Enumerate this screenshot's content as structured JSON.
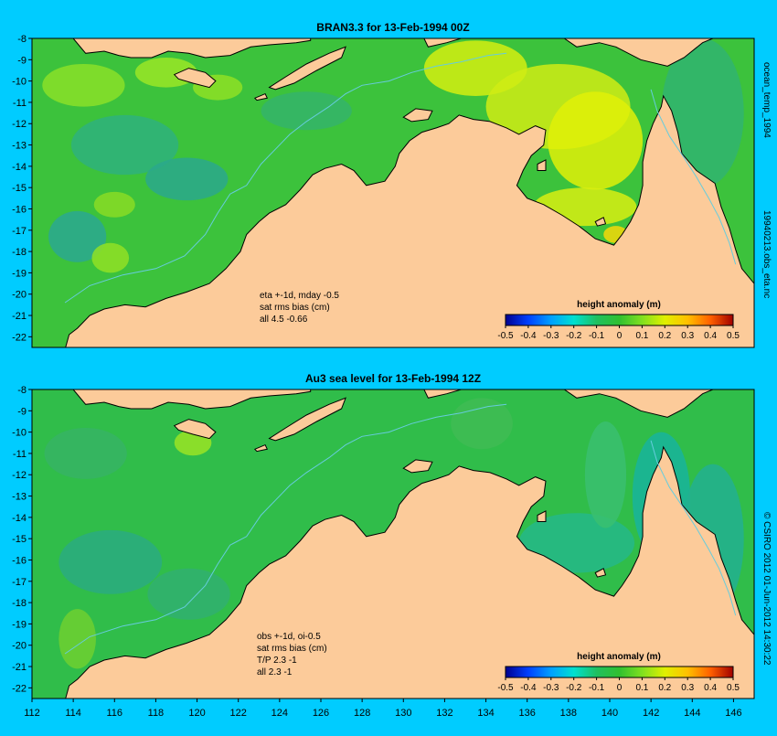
{
  "colors": {
    "background": "#00ccff",
    "land": "#fccb9a",
    "coast": "#000000",
    "isobath": "#66ccdd",
    "ocean_base_top": "#3cc23c",
    "ocean_base_bottom": "#30bd4a"
  },
  "side_labels": {
    "top_1": "ocean_temp_1994",
    "top_2": "19940213.obs_eta.nc",
    "bottom": "© CSIRO 2012  01-Jun-2012 14:30:22"
  },
  "x_ticks": [
    "112",
    "114",
    "116",
    "118",
    "120",
    "122",
    "124",
    "126",
    "128",
    "130",
    "132",
    "134",
    "136",
    "138",
    "140",
    "142",
    "144",
    "146"
  ],
  "y_ticks": [
    "-8",
    "-9",
    "-10",
    "-11",
    "-12",
    "-13",
    "-14",
    "-15",
    "-16",
    "-17",
    "-18",
    "-19",
    "-20",
    "-21",
    "-22"
  ],
  "colorbar": {
    "title": "height anomaly (m)",
    "ticks": [
      "-0.5",
      "-0.4",
      "-0.3",
      "-0.2",
      "-0.1",
      "0",
      "0.1",
      "0.2",
      "0.3",
      "0.4",
      "0.5"
    ],
    "stops": [
      "#00008f",
      "#0040ff",
      "#00a0ff",
      "#00e0d0",
      "#20c060",
      "#30c030",
      "#80e020",
      "#e0f000",
      "#ffc000",
      "#ff6000",
      "#a00000"
    ]
  },
  "panels": [
    {
      "title": "BRAN3.3  for 13-Feb-1994 00Z",
      "annotation": [
        "eta +-1d, mday -0.5",
        "sat rms bias (cm)",
        "all 4.5 -0.66"
      ]
    },
    {
      "title": "Au3 sea level  for 13-Feb-1994 12Z",
      "annotation": [
        "obs +-1d, oi-0.5",
        "sat rms bias (cm)",
        "T/P  2.3 -1",
        "all 2.3 -1"
      ]
    }
  ]
}
